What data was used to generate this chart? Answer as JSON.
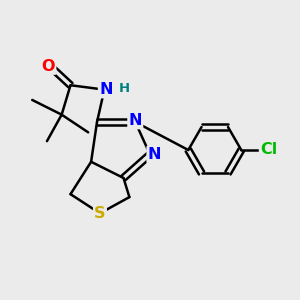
{
  "background_color": "#ebebeb",
  "bond_color": "#000000",
  "bond_width": 1.8,
  "atom_colors": {
    "O": "#ff0000",
    "N": "#0000ff",
    "S": "#ccaa00",
    "Cl": "#00bb00",
    "C": "#000000",
    "H": "#008080"
  },
  "font_size": 10.5
}
